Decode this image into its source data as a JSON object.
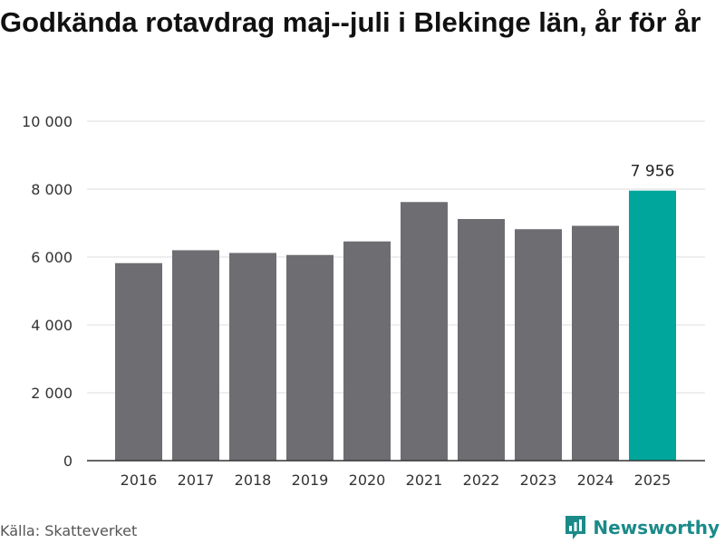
{
  "title": "Godkända rotavdrag maj--juli i Blekinge län, år för år",
  "source": "Källa: Skatteverket",
  "brand": "Newsworthy",
  "chart_data": {
    "type": "bar",
    "title": "Godkända rotavdrag maj--juli i Blekinge län, år för år",
    "xlabel": "",
    "ylabel": "",
    "categories": [
      "2016",
      "2017",
      "2018",
      "2019",
      "2020",
      "2021",
      "2022",
      "2023",
      "2024",
      "2025"
    ],
    "values": [
      5820,
      6200,
      6120,
      6060,
      6460,
      7620,
      7120,
      6820,
      6920,
      7956
    ],
    "ylim": [
      0,
      10000
    ],
    "yticks": [
      0,
      2000,
      4000,
      6000,
      8000,
      10000
    ],
    "ytick_labels": [
      "0",
      "2 000",
      "4 000",
      "6 000",
      "8 000",
      "10 000"
    ],
    "data_labels": [
      {
        "category": "2025",
        "text": "7 956"
      }
    ],
    "grid": true,
    "colors": {
      "default": "#6e6d72",
      "highlight": "#00a59b",
      "grid": "#dddddd",
      "axis": "#333333"
    },
    "highlight_category": "2025"
  }
}
